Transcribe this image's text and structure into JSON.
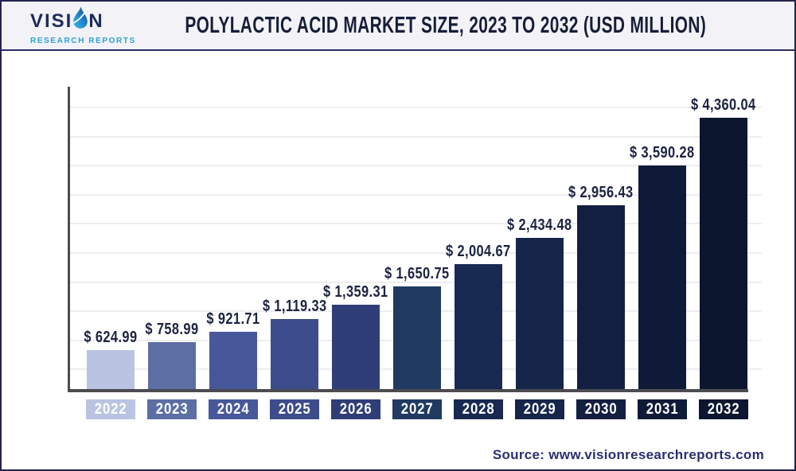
{
  "header": {
    "title": "POLYLACTIC ACID MARKET SIZE, 2023 TO 2032 (USD MILLION)",
    "logo": {
      "text_before_drop": "VISI",
      "text_after_drop": "N",
      "subtitle": "RESEARCH REPORTS"
    }
  },
  "footer": {
    "source_text": "Source: www.visionresearchreports.com"
  },
  "colors": {
    "page_border": "#23234f",
    "header_background": "#f3f3f7",
    "header_rule": "#2b2b5e",
    "title_text": "#161e39",
    "logo_navy": "#1c2b5a",
    "logo_blue": "#2aa0dc",
    "axis": "#4b4b50",
    "gridline": "#ededf1",
    "value_label_text": "#1b2340",
    "year_label_text": "#ffffff",
    "source_text": "#283070"
  },
  "chart_data": {
    "type": "bar",
    "title": "Polylactic Acid Market Size, 2023 to 2032 (USD Million)",
    "unit": "USD Million",
    "currency_prefix": "$",
    "categories": [
      "2022",
      "2023",
      "2024",
      "2025",
      "2026",
      "2027",
      "2028",
      "2029",
      "2030",
      "2031",
      "2032"
    ],
    "values": [
      624.99,
      758.99,
      921.71,
      1119.33,
      1359.31,
      1650.75,
      2004.67,
      2434.48,
      2956.43,
      3590.28,
      4360.04
    ],
    "value_labels": [
      "$ 624.99",
      "$ 758.99",
      "$ 921.71",
      "$ 1,119.33",
      "$ 1,359.31",
      "$ 1,650.75",
      "$ 2,004.67",
      "$ 2,434.48",
      "$ 2,956.43",
      "$ 3,590.28",
      "$ 4,360.04"
    ],
    "bar_colors": [
      "#b9c4e2",
      "#5c6ea4",
      "#47589a",
      "#3d4c8b",
      "#2f3e78",
      "#203a62",
      "#182a52",
      "#16264b",
      "#131f40",
      "#0f1a37",
      "#0c162f"
    ],
    "xlabel": "",
    "ylabel": "",
    "ylim": [
      0,
      4800
    ],
    "grid": true,
    "legend": false
  }
}
